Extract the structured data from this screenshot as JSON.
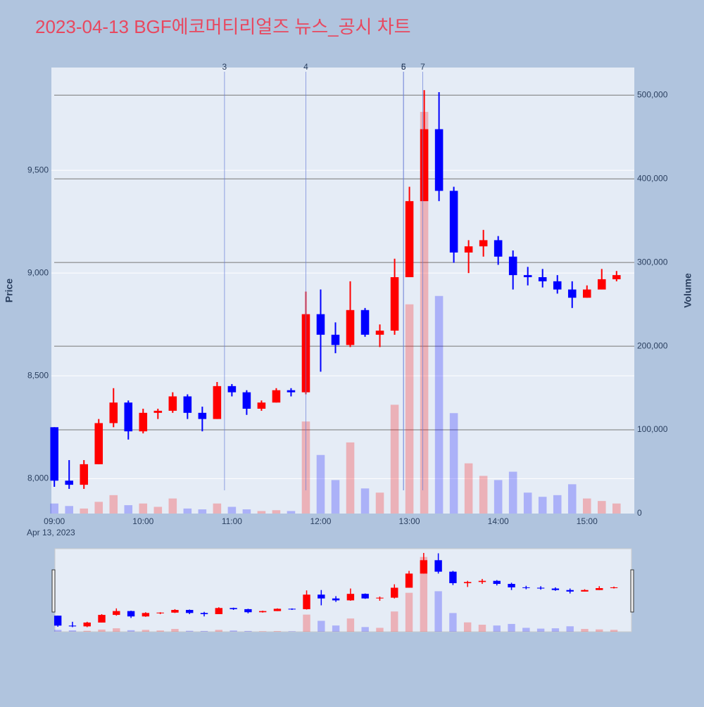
{
  "chart_data": {
    "type": "candlestick",
    "title": "2023-04-13 BGF에코머티리얼즈 뉴스_공시 차트",
    "x": [
      "09:00",
      "09:10",
      "09:20",
      "09:30",
      "09:40",
      "09:50",
      "10:00",
      "10:10",
      "10:20",
      "10:30",
      "10:40",
      "10:50",
      "11:00",
      "11:10",
      "11:20",
      "11:30",
      "11:40",
      "11:50",
      "12:00",
      "12:10",
      "12:20",
      "12:30",
      "12:40",
      "12:50",
      "13:00",
      "13:10",
      "13:20",
      "13:30",
      "13:40",
      "13:50",
      "14:00",
      "14:10",
      "14:20",
      "14:30",
      "14:40",
      "14:50",
      "15:00",
      "15:10",
      "15:20"
    ],
    "open": [
      8250,
      7990,
      7970,
      8070,
      8270,
      8370,
      8230,
      8320,
      8330,
      8400,
      8320,
      8290,
      8450,
      8420,
      8340,
      8370,
      8430,
      8420,
      8800,
      8700,
      8650,
      8820,
      8700,
      8720,
      8980,
      9350,
      9700,
      9400,
      9100,
      9130,
      9160,
      9080,
      8990,
      8980,
      8960,
      8920,
      8880,
      8920,
      8970
    ],
    "high": [
      8250,
      8090,
      8090,
      8290,
      8440,
      8380,
      8340,
      8340,
      8420,
      8410,
      8350,
      8470,
      8460,
      8430,
      8380,
      8440,
      8440,
      8910,
      8920,
      8760,
      8960,
      8830,
      8750,
      9070,
      9420,
      9890,
      9880,
      9420,
      9160,
      9210,
      9180,
      9110,
      9030,
      9020,
      8990,
      8960,
      8940,
      9020,
      9010
    ],
    "low": [
      7960,
      7950,
      7950,
      8070,
      8250,
      8190,
      8220,
      8290,
      8320,
      8290,
      8230,
      8290,
      8400,
      8310,
      8330,
      8370,
      8400,
      8410,
      8520,
      8610,
      8640,
      8690,
      8640,
      8700,
      8980,
      9350,
      9350,
      9050,
      9000,
      9080,
      9040,
      8920,
      8940,
      8930,
      8900,
      8830,
      8880,
      8920,
      8960
    ],
    "close": [
      7990,
      7970,
      8070,
      8270,
      8370,
      8230,
      8320,
      8330,
      8400,
      8320,
      8290,
      8450,
      8420,
      8340,
      8370,
      8430,
      8420,
      8800,
      8700,
      8650,
      8820,
      8700,
      8720,
      8980,
      9350,
      9700,
      9400,
      9100,
      9130,
      9160,
      9080,
      8990,
      8980,
      8960,
      8920,
      8880,
      8920,
      8970,
      8990
    ],
    "volume": [
      12000,
      9000,
      6000,
      14000,
      22000,
      10000,
      12000,
      8000,
      18000,
      6000,
      5000,
      12000,
      8000,
      5000,
      3000,
      4000,
      3000,
      110000,
      70000,
      40000,
      85000,
      30000,
      25000,
      130000,
      250000,
      480000,
      260000,
      120000,
      60000,
      45000,
      40000,
      50000,
      25000,
      20000,
      22000,
      35000,
      18000,
      15000,
      12000
    ],
    "increasing_color": "#ff0000",
    "decreasing_color": "#0000ff",
    "xlim": [
      "08:58",
      "15:32"
    ],
    "xticks": [
      "09:00",
      "10:00",
      "11:00",
      "12:00",
      "13:00",
      "14:00",
      "15:00"
    ],
    "x_date_label": "Apr 13, 2023",
    "ylim": [
      7830,
      10000
    ],
    "yticks": [
      {
        "value": 8000,
        "label": "8,000"
      },
      {
        "value": 8500,
        "label": "8,500"
      },
      {
        "value": 9000,
        "label": "9,000"
      },
      {
        "value": 9500,
        "label": "9,500"
      }
    ],
    "y_title": "Price",
    "y2lim": [
      0,
      533000
    ],
    "y2ticks": [
      0,
      {
        "value": 100000,
        "label": "100,000"
      },
      {
        "value": 200000,
        "label": "200,000"
      },
      {
        "value": 300000,
        "label": "300,000"
      },
      {
        "value": 400000,
        "label": "400,000"
      },
      {
        "value": 500000,
        "label": "500,000"
      }
    ],
    "y2_title": "Volume",
    "annotations": [
      {
        "x": "10:55",
        "text": "3"
      },
      {
        "x": "11:50",
        "text": "4"
      },
      {
        "x": "12:56",
        "text": "6"
      },
      {
        "x": "12:56",
        "text": "5"
      },
      {
        "x": "13:09",
        "text": "7"
      }
    ],
    "grid": true,
    "rangeslider": true
  }
}
